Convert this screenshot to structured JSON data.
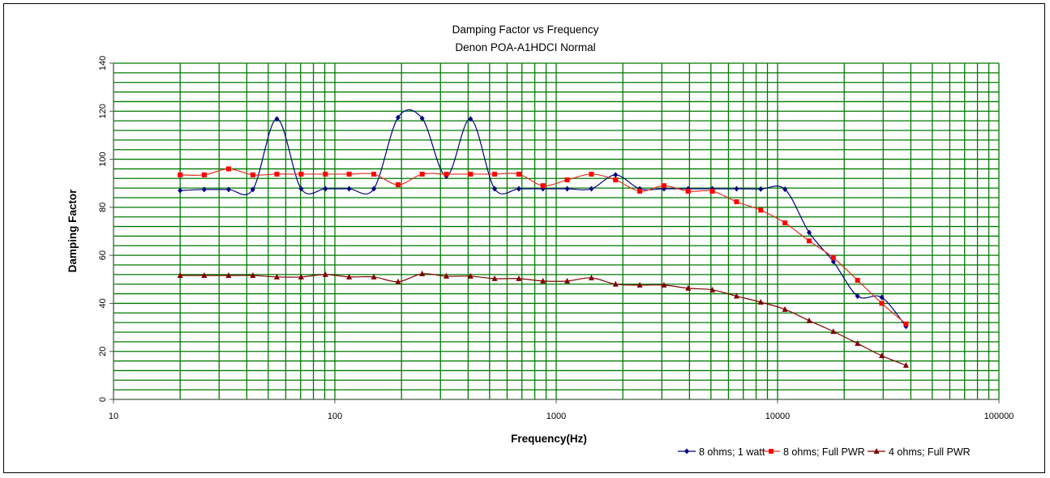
{
  "chart_data": {
    "type": "line",
    "title": "Damping Factor  vs Frequency",
    "subtitle": "Denon POA-A1HDCI Normal",
    "xlabel": "Frequency(Hz)",
    "ylabel": "Damping Factor",
    "xscale": "log",
    "xlim": [
      10,
      100000
    ],
    "ylim": [
      0,
      140
    ],
    "xticks": [
      "10",
      "100",
      "1000",
      "10000",
      "100000"
    ],
    "yticks": [
      "0",
      "20",
      "40",
      "60",
      "80",
      "100",
      "120",
      "140"
    ],
    "grid": true,
    "legend_position": "bottom-right",
    "x": [
      20,
      25.7,
      33.1,
      42.6,
      54.7,
      70.4,
      90.6,
      116,
      150,
      193,
      248,
      319,
      410,
      527,
      678,
      871,
      1121,
      1442,
      1854,
      2385,
      3067,
      3945,
      5075,
      6528,
      8396,
      10800,
      13890,
      17870,
      22980,
      29560,
      38020
    ],
    "series": [
      {
        "name": "8 ohms; 1 watt",
        "color": "#000080",
        "marker": "diamond",
        "values": [
          87,
          87.4,
          87.4,
          87.4,
          116.8,
          87.7,
          87.7,
          87.7,
          87.7,
          117.4,
          117,
          93,
          116.8,
          87.7,
          87.7,
          87.7,
          87.7,
          87.7,
          93.5,
          87.7,
          87.7,
          87.7,
          87.7,
          87.7,
          87.6,
          87.5,
          69.5,
          57.4,
          43,
          42.5,
          30.4
        ]
      },
      {
        "name": "8 ohms; Full PWR",
        "color": "#ff0000",
        "line_color": "#e03020",
        "marker": "square",
        "values": [
          93.5,
          93.5,
          96,
          93.5,
          93.8,
          93.8,
          93.8,
          93.8,
          93.8,
          89.4,
          93.8,
          93.8,
          93.8,
          93.8,
          93.8,
          89,
          91.4,
          93.8,
          91.4,
          86.7,
          89,
          86.7,
          86.7,
          82.3,
          78.8,
          73.5,
          66,
          59,
          49.6,
          40,
          31.4
        ]
      },
      {
        "name": "4 ohms; Full PWR",
        "color": "#800000",
        "marker": "triangle",
        "values": [
          51.6,
          51.6,
          51.6,
          51.6,
          51,
          51,
          52,
          51,
          51,
          49,
          52.3,
          51.3,
          51.3,
          50.3,
          50.3,
          49.3,
          49.3,
          50.6,
          48,
          47.6,
          47.6,
          46.3,
          45.6,
          43,
          40.5,
          37.5,
          32.8,
          28.3,
          23.3,
          18.2,
          14.2
        ]
      }
    ]
  }
}
